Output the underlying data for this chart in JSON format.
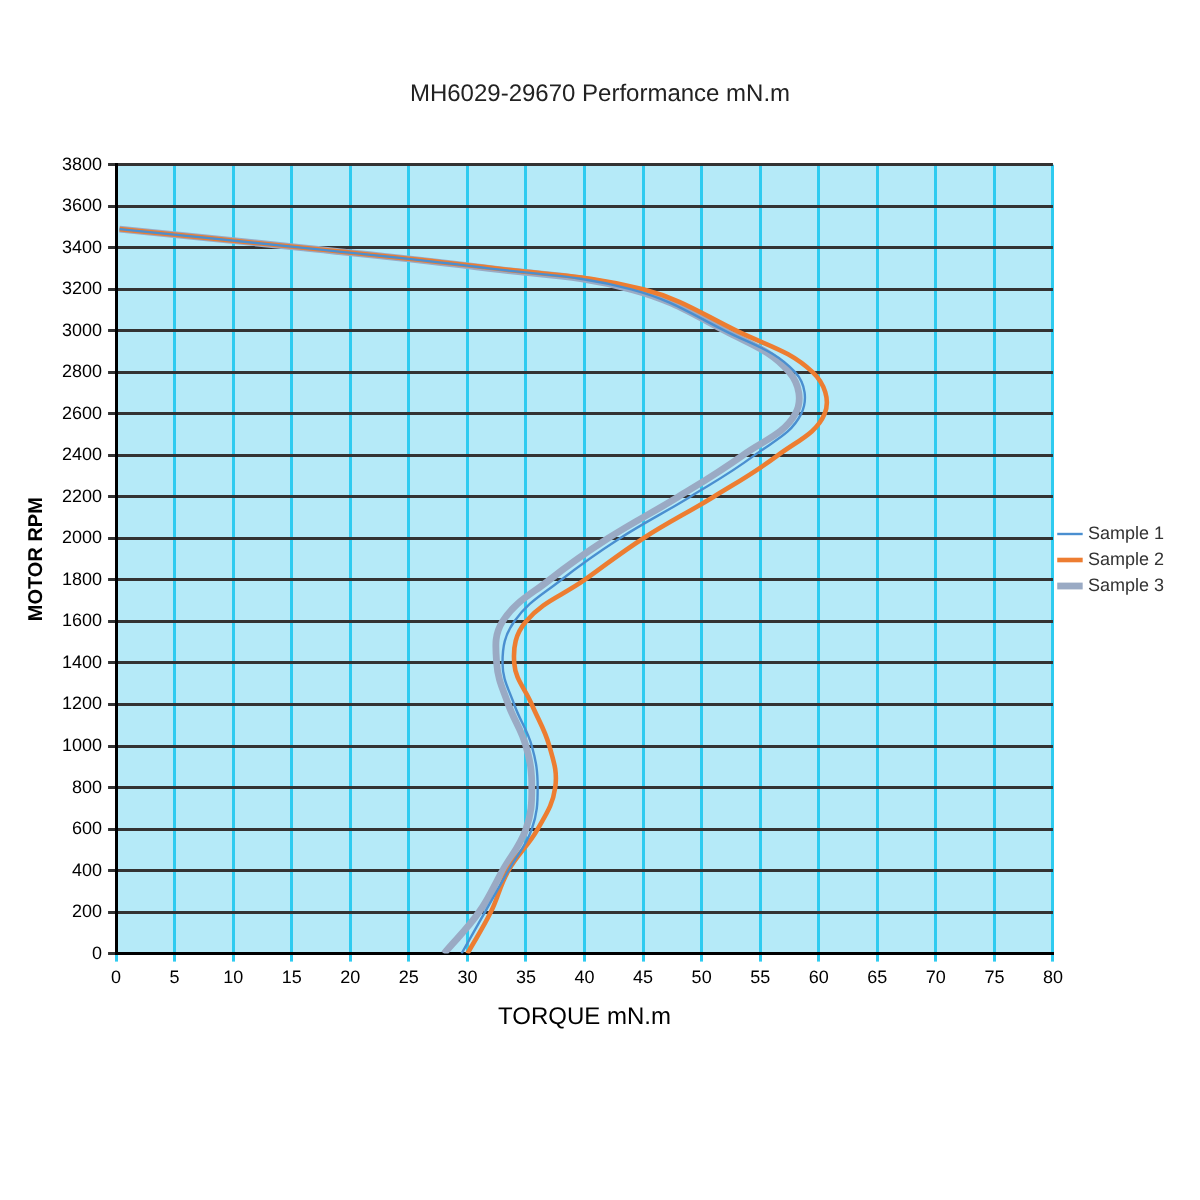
{
  "chart_data": {
    "type": "line",
    "title": "MH6029-29670 Performance mN.m",
    "xlabel": "TORQUE mN.m",
    "ylabel": "MOTOR RPM",
    "xlim": [
      0,
      80
    ],
    "xticks": [
      0,
      5,
      10,
      15,
      20,
      25,
      30,
      35,
      40,
      45,
      50,
      55,
      60,
      65,
      70,
      75,
      80
    ],
    "ylim": [
      0,
      3800
    ],
    "yticks": [
      0,
      200,
      400,
      600,
      800,
      1000,
      1200,
      1400,
      1600,
      1800,
      2000,
      2200,
      2400,
      2600,
      2800,
      3000,
      3200,
      3400,
      3600,
      3800
    ],
    "grid": true,
    "legend": "right",
    "marker": "none",
    "line_style": "solid",
    "series": [
      {
        "name": "Sample 1",
        "color": "#4a8fd0",
        "x": [
          29.5,
          31.5,
          33.5,
          35.5,
          36,
          35.5,
          34,
          33,
          34,
          38,
          43,
          49,
          54.5,
          58.5,
          58,
          52,
          44,
          32,
          16,
          0.3
        ],
        "values": [
          0,
          200,
          400,
          600,
          800,
          1000,
          1200,
          1400,
          1600,
          1800,
          2000,
          2200,
          2400,
          2600,
          2800,
          3000,
          3200,
          3300,
          3400,
          3490
        ]
      },
      {
        "name": "Sample 2",
        "color": "#ed7d31",
        "x": [
          30,
          32,
          33.5,
          36,
          37.5,
          37,
          35.5,
          34,
          35,
          40,
          45,
          51,
          56.5,
          60.5,
          59.5,
          53,
          45,
          32.5,
          16,
          0.3
        ],
        "values": [
          0,
          200,
          400,
          600,
          800,
          1000,
          1200,
          1400,
          1600,
          1800,
          2000,
          2200,
          2400,
          2600,
          2800,
          3000,
          3200,
          3300,
          3400,
          3490
        ]
      },
      {
        "name": "Sample 3",
        "color": "#9aaac4",
        "x": [
          28,
          31,
          33,
          35,
          35.5,
          35,
          33.5,
          32.5,
          33,
          37,
          42,
          48,
          53.5,
          58,
          57.5,
          52,
          44,
          32,
          16,
          0.3
        ],
        "values": [
          0,
          200,
          400,
          600,
          800,
          1000,
          1200,
          1400,
          1600,
          1800,
          2000,
          2200,
          2400,
          2600,
          2800,
          3000,
          3200,
          3300,
          3400,
          3490
        ]
      }
    ]
  }
}
